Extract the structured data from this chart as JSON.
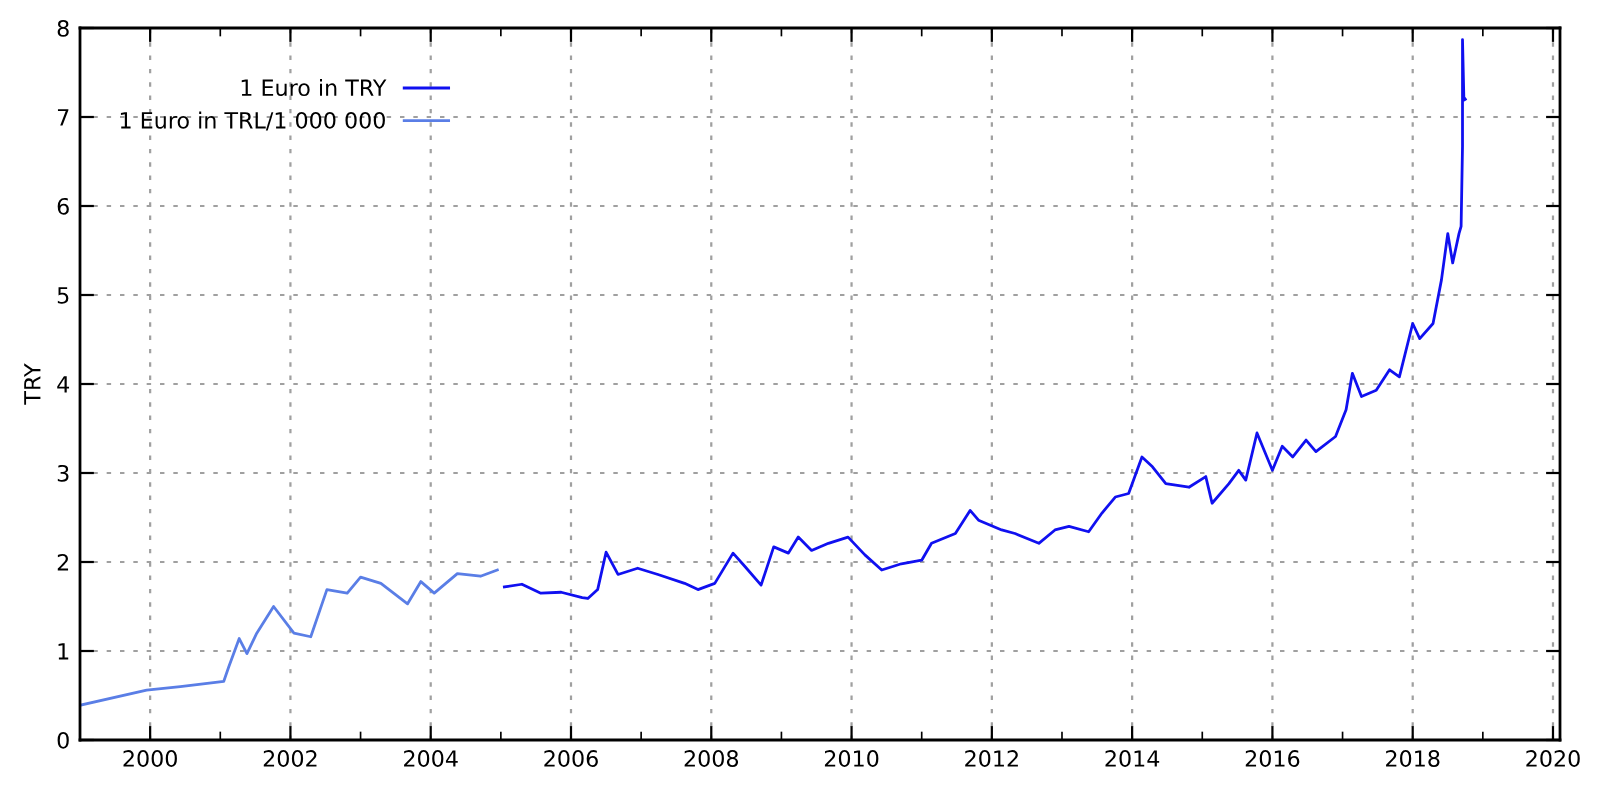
{
  "chart_data": {
    "type": "line",
    "ylabel": "TRY",
    "xlim": [
      1999,
      2020.1
    ],
    "ylim": [
      0,
      8
    ],
    "xticks": [
      2000,
      {
        "value": 2001,
        "label": null
      },
      2002,
      {
        "value": 2003,
        "label": null
      },
      2004,
      {
        "value": 2005,
        "label": null
      },
      2006,
      {
        "value": 2007,
        "label": null
      },
      2008,
      {
        "value": 2009,
        "label": null
      },
      2010,
      {
        "value": 2011,
        "label": null
      },
      2012,
      {
        "value": 2013,
        "label": null
      },
      2014,
      {
        "value": 2015,
        "label": null
      },
      2016,
      {
        "value": 2017,
        "label": null
      },
      2018,
      {
        "value": 2019,
        "label": null
      },
      2020
    ],
    "yticks": [
      0,
      1,
      2,
      3,
      4,
      5,
      6,
      7,
      8
    ],
    "grid": true,
    "legend": "top left",
    "line_style": "solid",
    "marker": "none",
    "series": [
      {
        "name": "1 Euro in TRY",
        "color": "#1010f0",
        "x": [
          2005.05,
          2005.3,
          2005.57,
          2005.86,
          2006.16,
          2006.24,
          2006.38,
          2006.5,
          2006.67,
          2006.95,
          2007.24,
          2007.62,
          2007.81,
          2008.05,
          2008.31,
          2008.48,
          2008.71,
          2008.89,
          2009.1,
          2009.24,
          2009.43,
          2009.67,
          2009.95,
          2010.19,
          2010.43,
          2010.71,
          2011.0,
          2011.14,
          2011.48,
          2011.69,
          2011.81,
          2012.14,
          2012.33,
          2012.67,
          2012.9,
          2013.1,
          2013.38,
          2013.57,
          2013.76,
          2013.95,
          2014.14,
          2014.29,
          2014.48,
          2014.81,
          2015.05,
          2015.14,
          2015.38,
          2015.52,
          2015.62,
          2015.78,
          2016.0,
          2016.14,
          2016.29,
          2016.48,
          2016.62,
          2016.9,
          2017.05,
          2017.14,
          2017.27,
          2017.48,
          2017.67,
          2017.81,
          2018.0,
          2018.1,
          2018.29,
          2018.41,
          2018.5,
          2018.57,
          2018.66,
          2018.69,
          2018.71,
          2018.71,
          2018.73,
          2018.75
        ],
        "values": [
          1.72,
          1.75,
          1.65,
          1.66,
          1.6,
          1.59,
          1.69,
          2.11,
          1.86,
          1.93,
          1.86,
          1.76,
          1.69,
          1.76,
          2.1,
          1.95,
          1.74,
          2.17,
          2.1,
          2.28,
          2.13,
          2.21,
          2.28,
          2.08,
          1.91,
          1.98,
          2.02,
          2.21,
          2.32,
          2.58,
          2.47,
          2.36,
          2.32,
          2.21,
          2.36,
          2.4,
          2.34,
          2.55,
          2.73,
          2.77,
          3.18,
          3.07,
          2.88,
          2.84,
          2.96,
          2.66,
          2.88,
          3.03,
          2.92,
          3.45,
          3.03,
          3.3,
          3.18,
          3.37,
          3.24,
          3.41,
          3.71,
          4.12,
          3.86,
          3.93,
          4.16,
          4.08,
          4.68,
          4.51,
          4.68,
          5.17,
          5.69,
          5.36,
          5.69,
          5.77,
          6.67,
          7.87,
          7.19,
          7.2
        ]
      },
      {
        "name": "1 Euro in TRL/1 000 000",
        "color": "#5a7ee6",
        "x": [
          1999.0,
          1999.95,
          2000.43,
          2001.05,
          2001.12,
          2001.27,
          2001.38,
          2001.52,
          2001.76,
          2002.05,
          2002.29,
          2002.52,
          2002.81,
          2003.0,
          2003.29,
          2003.67,
          2003.86,
          2004.05,
          2004.38,
          2004.71,
          2004.95
        ],
        "values": [
          0.39,
          0.56,
          0.6,
          0.66,
          0.82,
          1.14,
          0.97,
          1.2,
          1.5,
          1.2,
          1.16,
          1.69,
          1.65,
          1.83,
          1.76,
          1.53,
          1.78,
          1.65,
          1.87,
          1.84,
          1.91
        ]
      }
    ]
  }
}
